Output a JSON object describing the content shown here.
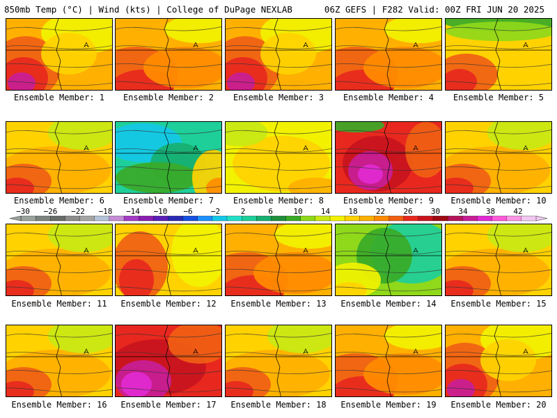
{
  "header": {
    "title": "850mb Temp (°C) | Wind (kts) | College of DuPage NEXLAB",
    "run": "06Z GEFS | F282 Valid: 00Z FRI JUN 20 2025"
  },
  "caption_prefix": "Ensemble Member: ",
  "members": [
    {
      "id": 1,
      "label": "Ensemble Member: 1",
      "scheme": "hot-sw"
    },
    {
      "id": 2,
      "label": "Ensemble Member: 2",
      "scheme": "hot"
    },
    {
      "id": 3,
      "label": "Ensemble Member: 3",
      "scheme": "hot-sw"
    },
    {
      "id": 4,
      "label": "Ensemble Member: 4",
      "scheme": "hot"
    },
    {
      "id": 5,
      "label": "Ensemble Member: 5",
      "scheme": "cool-north"
    },
    {
      "id": 6,
      "label": "Ensemble Member: 6",
      "scheme": "warm"
    },
    {
      "id": 7,
      "label": "Ensemble Member: 7",
      "scheme": "cold-trough"
    },
    {
      "id": 8,
      "label": "Ensemble Member: 8",
      "scheme": "yellow-low"
    },
    {
      "id": 9,
      "label": "Ensemble Member: 9",
      "scheme": "hot-center"
    },
    {
      "id": 10,
      "label": "Ensemble Member: 10",
      "scheme": "warm"
    },
    {
      "id": 11,
      "label": "Ensemble Member: 11",
      "scheme": "warm"
    },
    {
      "id": 12,
      "label": "Ensemble Member: 12",
      "scheme": "warm-west"
    },
    {
      "id": 13,
      "label": "Ensemble Member: 13",
      "scheme": "hot"
    },
    {
      "id": 14,
      "label": "Ensemble Member: 14",
      "scheme": "cool-green"
    },
    {
      "id": 15,
      "label": "Ensemble Member: 15",
      "scheme": "warm"
    },
    {
      "id": 16,
      "label": "Ensemble Member: 16",
      "scheme": "warm"
    },
    {
      "id": 17,
      "label": "Ensemble Member: 17",
      "scheme": "very-hot"
    },
    {
      "id": 18,
      "label": "Ensemble Member: 18",
      "scheme": "warm"
    },
    {
      "id": 19,
      "label": "Ensemble Member: 19",
      "scheme": "hot"
    },
    {
      "id": 20,
      "label": "Ensemble Member: 20",
      "scheme": "hot-sw"
    }
  ],
  "legend": {
    "ticks": [
      "−30",
      "−26",
      "−22",
      "−18",
      "−14",
      "−10",
      "−6",
      "−2",
      "2",
      "6",
      "10",
      "14",
      "18",
      "22",
      "26",
      "30",
      "34",
      "38",
      "42"
    ],
    "colors": [
      "#9aa29c",
      "#7d847f",
      "#676c69",
      "#8c8c8c",
      "#a5a5a5",
      "#b4c4d8",
      "#c58cd6",
      "#a33bc6",
      "#8a1fb0",
      "#5a1fb8",
      "#2a2ab4",
      "#1650e0",
      "#1e90ff",
      "#14c8e8",
      "#22e0c8",
      "#1ecf9a",
      "#17b070",
      "#1f8f3c",
      "#3aaa28",
      "#8fd81a",
      "#c8e814",
      "#f2f200",
      "#ffd200",
      "#ffb000",
      "#ff8c00",
      "#f06014",
      "#e8281e",
      "#c8141e",
      "#a00a14",
      "#b4145a",
      "#c81e96",
      "#e22ad2",
      "#ff5ad8",
      "#ff96e6",
      "#f0c8f0"
    ]
  }
}
